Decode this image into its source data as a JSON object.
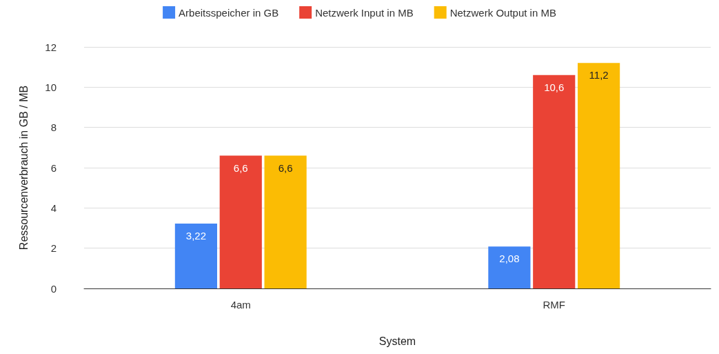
{
  "chart_data": {
    "type": "bar",
    "xlabel": "System",
    "ylabel": "Ressourcenverbrauch in GB / MB",
    "categories": [
      "4am",
      "RMF"
    ],
    "series": [
      {
        "name": "Arbeitsspeicher in GB",
        "color": "#4285f4",
        "values": [
          3.22,
          2.08
        ],
        "value_labels": [
          "3,22",
          "2,08"
        ]
      },
      {
        "name": "Netzwerk Input in MB",
        "color": "#ea4335",
        "values": [
          6.6,
          10.6
        ],
        "value_labels": [
          "6,6",
          "10,6"
        ]
      },
      {
        "name": "Netzwerk Output in MB",
        "color": "#fbbc04",
        "values": [
          6.6,
          11.2
        ],
        "value_labels": [
          "6,6",
          "11,2"
        ]
      }
    ],
    "ylim": [
      0,
      12
    ],
    "yticks": [
      0,
      2,
      4,
      6,
      8,
      10,
      12
    ],
    "grid": "y",
    "legend": "top"
  }
}
